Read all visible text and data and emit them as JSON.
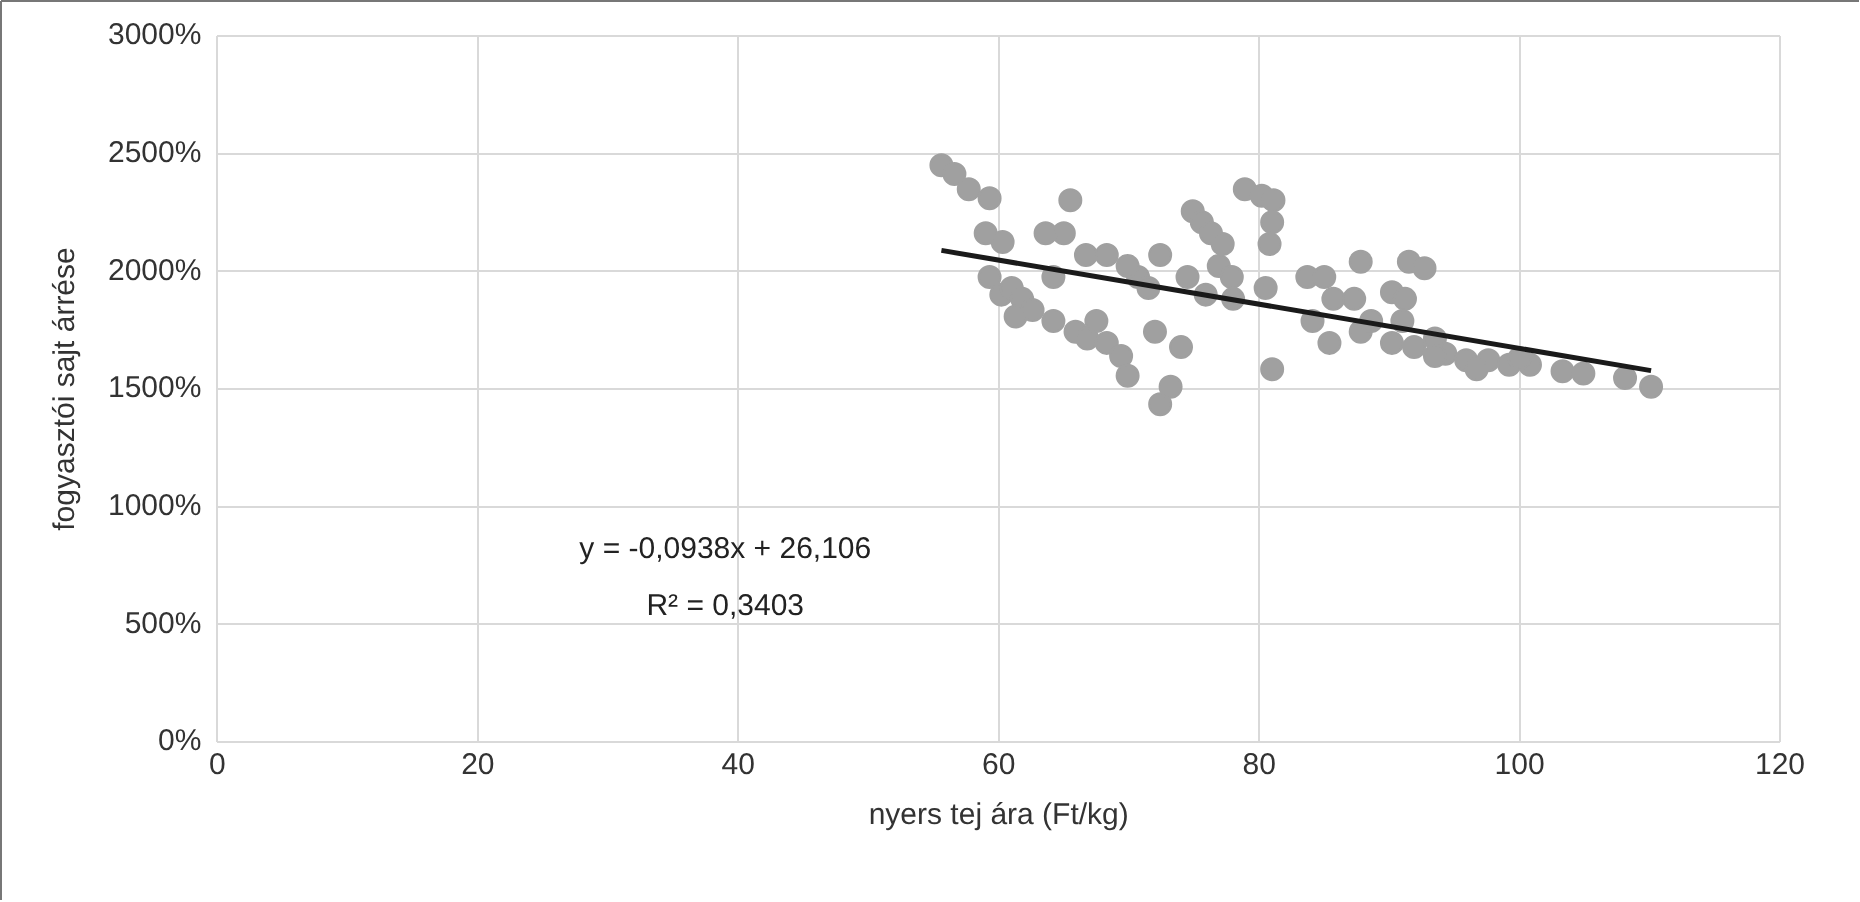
{
  "chart_data": {
    "type": "scatter",
    "xlabel": "nyers tej ára (Ft/kg)",
    "ylabel": "fogyasztói sajt árrése",
    "xlim": [
      0,
      120
    ],
    "xticks": [
      0,
      20,
      40,
      60,
      80,
      100,
      120
    ],
    "ylim": [
      0,
      3000
    ],
    "yticks": [
      {
        "value": 0,
        "label": "0%"
      },
      {
        "value": 500,
        "label": "500%"
      },
      {
        "value": 1000,
        "label": "1000%"
      },
      {
        "value": 1500,
        "label": "1500%"
      },
      {
        "value": 2000,
        "label": "2000%"
      },
      {
        "value": 2500,
        "label": "2500%"
      },
      {
        "value": 3000,
        "label": "3000%"
      }
    ],
    "grid": true,
    "legend": false,
    "marker": "circle",
    "annotations": [
      "y = -0,0938x + 26,106",
      "R² = 0,3403"
    ],
    "series": [
      {
        "color": "#a0a0a0",
        "x": [
          55.6,
          56.6,
          57.7,
          59.3,
          59,
          60.3,
          59.3,
          60.2,
          61,
          61.8,
          61.3,
          62.6,
          64.2,
          65.5,
          65,
          63.6,
          64.2,
          65.9,
          66.8,
          67.5,
          68.3,
          68.3,
          69.4,
          69.9,
          70.7,
          71.5,
          72,
          72.4,
          73.2,
          74,
          74.5,
          74.9,
          75.6,
          76.3,
          76.9,
          77.9,
          78.9,
          80.2,
          81.1,
          81,
          80.8,
          80.5,
          81,
          83.7,
          85,
          87.8,
          85.7,
          87.3,
          90.2,
          91.2,
          91.5,
          92.7,
          84.1,
          85.4,
          87.8,
          90.2,
          91.9,
          93.5,
          94.3,
          95.9,
          97.6,
          99.2,
          100.8,
          103.3,
          104.9,
          108.1,
          110.1,
          88.6,
          91,
          93.5,
          96.7,
          100,
          66.7,
          69.9,
          72.4,
          77.2,
          78,
          75.9
        ],
        "values": [
          2451,
          2414,
          2349,
          2311,
          2162,
          2125,
          1976,
          1901,
          1929,
          1883,
          1808,
          1836,
          1976,
          2302,
          2162,
          2162,
          1789,
          1743,
          1715,
          1789,
          2069,
          1696,
          1640,
          1556,
          1976,
          1929,
          1743,
          1435,
          1510,
          1678,
          1976,
          2255,
          2209,
          2162,
          2023,
          1976,
          2349,
          2321,
          2302,
          2209,
          2116,
          1929,
          1584,
          1976,
          1976,
          2041,
          1883,
          1883,
          1911,
          1883,
          2041,
          2013,
          1789,
          1696,
          1743,
          1696,
          1678,
          1715,
          1650,
          1622,
          1622,
          1603,
          1603,
          1575,
          1566,
          1547,
          1510,
          1789,
          1789,
          1640,
          1584,
          1631,
          2069,
          2023,
          2069,
          2116,
          1883,
          1901
        ]
      },
      {
        "type": "line",
        "color": "#1a1a1a",
        "marker": "none",
        "x": [
          55.6,
          110.1
        ],
        "values": [
          2089,
          1578
        ]
      }
    ]
  }
}
